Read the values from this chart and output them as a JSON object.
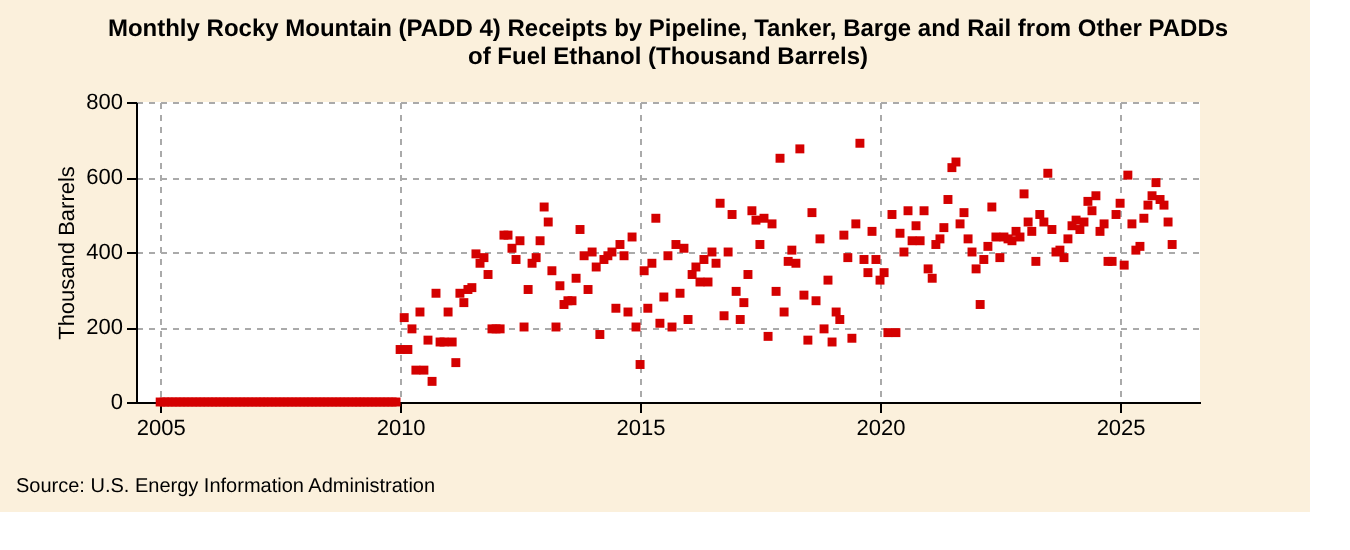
{
  "chart_data": {
    "type": "scatter",
    "title": "Monthly Rocky Mountain (PADD 4) Receipts by Pipeline, Tanker, Barge and Rail from Other PADDs of Fuel Ethanol (Thousand Barrels)",
    "ylabel": "Thousand Barrels",
    "annotations": [
      "Source: U.S. Energy Information Administration"
    ],
    "xlim": [
      "2004-07",
      "2026-09"
    ],
    "xticks": [
      "2005",
      "2010",
      "2015",
      "2020",
      "2025"
    ],
    "ylim": [
      0,
      800
    ],
    "yticks": [
      0,
      200,
      400,
      600,
      800
    ],
    "grid": true,
    "marker": "square",
    "series": [
      {
        "color": "#d40000",
        "x": [
          "2005-01",
          "2005-02",
          "2005-03",
          "2005-04",
          "2005-05",
          "2005-06",
          "2005-07",
          "2005-08",
          "2005-09",
          "2005-10",
          "2005-11",
          "2005-12",
          "2006-01",
          "2006-02",
          "2006-03",
          "2006-04",
          "2006-05",
          "2006-06",
          "2006-07",
          "2006-08",
          "2006-09",
          "2006-10",
          "2006-11",
          "2006-12",
          "2007-01",
          "2007-02",
          "2007-03",
          "2007-04",
          "2007-05",
          "2007-06",
          "2007-07",
          "2007-08",
          "2007-09",
          "2007-10",
          "2007-11",
          "2007-12",
          "2008-01",
          "2008-02",
          "2008-03",
          "2008-04",
          "2008-05",
          "2008-06",
          "2008-07",
          "2008-08",
          "2008-09",
          "2008-10",
          "2008-11",
          "2008-12",
          "2009-01",
          "2009-02",
          "2009-03",
          "2009-04",
          "2009-05",
          "2009-06",
          "2009-07",
          "2009-08",
          "2009-09",
          "2009-10",
          "2009-11",
          "2009-12",
          "2010-01",
          "2010-02",
          "2010-03",
          "2010-04",
          "2010-05",
          "2010-06",
          "2010-07",
          "2010-08",
          "2010-09",
          "2010-10",
          "2010-11",
          "2010-12",
          "2011-01",
          "2011-02",
          "2011-03",
          "2011-04",
          "2011-05",
          "2011-06",
          "2011-07",
          "2011-08",
          "2011-09",
          "2011-10",
          "2011-11",
          "2011-12",
          "2012-01",
          "2012-02",
          "2012-03",
          "2012-04",
          "2012-05",
          "2012-06",
          "2012-07",
          "2012-08",
          "2012-09",
          "2012-10",
          "2012-11",
          "2012-12",
          "2013-01",
          "2013-02",
          "2013-03",
          "2013-04",
          "2013-05",
          "2013-06",
          "2013-07",
          "2013-08",
          "2013-09",
          "2013-10",
          "2013-11",
          "2013-12",
          "2014-01",
          "2014-02",
          "2014-03",
          "2014-04",
          "2014-05",
          "2014-06",
          "2014-07",
          "2014-08",
          "2014-09",
          "2014-10",
          "2014-11",
          "2014-12",
          "2015-01",
          "2015-02",
          "2015-03",
          "2015-04",
          "2015-05",
          "2015-06",
          "2015-07",
          "2015-08",
          "2015-09",
          "2015-10",
          "2015-11",
          "2015-12",
          "2016-01",
          "2016-02",
          "2016-03",
          "2016-04",
          "2016-05",
          "2016-06",
          "2016-07",
          "2016-08",
          "2016-09",
          "2016-10",
          "2016-11",
          "2016-12",
          "2017-01",
          "2017-02",
          "2017-03",
          "2017-04",
          "2017-05",
          "2017-06",
          "2017-07",
          "2017-08",
          "2017-09",
          "2017-10",
          "2017-11",
          "2017-12",
          "2018-01",
          "2018-02",
          "2018-03",
          "2018-04",
          "2018-05",
          "2018-06",
          "2018-07",
          "2018-08",
          "2018-09",
          "2018-10",
          "2018-11",
          "2018-12",
          "2019-01",
          "2019-02",
          "2019-03",
          "2019-04",
          "2019-05",
          "2019-06",
          "2019-07",
          "2019-08",
          "2019-09",
          "2019-10",
          "2019-11",
          "2019-12",
          "2020-01",
          "2020-02",
          "2020-03",
          "2020-04",
          "2020-05",
          "2020-06",
          "2020-07",
          "2020-08",
          "2020-09",
          "2020-10",
          "2020-11",
          "2020-12",
          "2021-01",
          "2021-02",
          "2021-03",
          "2021-04",
          "2021-05",
          "2021-06",
          "2021-07",
          "2021-08",
          "2021-09",
          "2021-10",
          "2021-11",
          "2021-12",
          "2022-01",
          "2022-02",
          "2022-03",
          "2022-04",
          "2022-05",
          "2022-06",
          "2022-07",
          "2022-08",
          "2022-09",
          "2022-10",
          "2022-11",
          "2022-12",
          "2023-01",
          "2023-02",
          "2023-03",
          "2023-04",
          "2023-05",
          "2023-06",
          "2023-07",
          "2023-08",
          "2023-09",
          "2023-10",
          "2023-11",
          "2023-12",
          "2024-01",
          "2024-02",
          "2024-03",
          "2024-04",
          "2024-05",
          "2024-06",
          "2024-07",
          "2024-08",
          "2024-09",
          "2024-10",
          "2024-11",
          "2024-12",
          "2025-01",
          "2025-02",
          "2025-03",
          "2025-04",
          "2025-05",
          "2025-06",
          "2025-07",
          "2025-08",
          "2025-09",
          "2025-10",
          "2025-11",
          "2025-12",
          "2026-01",
          "2026-02"
        ],
        "values": [
          0,
          0,
          0,
          0,
          0,
          0,
          0,
          0,
          0,
          0,
          0,
          0,
          0,
          0,
          0,
          0,
          0,
          0,
          0,
          0,
          0,
          0,
          0,
          0,
          0,
          0,
          0,
          0,
          0,
          0,
          0,
          0,
          0,
          0,
          0,
          0,
          0,
          0,
          0,
          0,
          0,
          0,
          0,
          0,
          0,
          0,
          0,
          0,
          0,
          0,
          0,
          0,
          0,
          0,
          0,
          0,
          0,
          0,
          0,
          0,
          140,
          225,
          140,
          195,
          85,
          240,
          85,
          165,
          55,
          290,
          160,
          160,
          240,
          160,
          105,
          290,
          265,
          300,
          305,
          395,
          370,
          385,
          340,
          195,
          195,
          195,
          445,
          445,
          410,
          380,
          430,
          200,
          300,
          370,
          385,
          430,
          520,
          480,
          350,
          200,
          310,
          260,
          270,
          270,
          330,
          460,
          390,
          300,
          400,
          360,
          180,
          380,
          390,
          400,
          250,
          420,
          390,
          240,
          440,
          200,
          100,
          350,
          250,
          370,
          490,
          210,
          280,
          390,
          200,
          420,
          290,
          410,
          220,
          340,
          360,
          320,
          380,
          320,
          400,
          370,
          530,
          230,
          400,
          500,
          295,
          220,
          265,
          340,
          510,
          485,
          420,
          490,
          175,
          475,
          295,
          650,
          240,
          375,
          405,
          370,
          675,
          285,
          165,
          505,
          270,
          435,
          195,
          325,
          160,
          240,
          220,
          445,
          385,
          170,
          475,
          690,
          380,
          345,
          455,
          380,
          325,
          345,
          185,
          500,
          185,
          450,
          400,
          510,
          430,
          470,
          430,
          510,
          355,
          330,
          420,
          435,
          465,
          540,
          625,
          640,
          475,
          505,
          435,
          400,
          355,
          260,
          380,
          415,
          520,
          440,
          385,
          440,
          435,
          430,
          455,
          440,
          555,
          480,
          455,
          375,
          500,
          480,
          610,
          460,
          400,
          405,
          385,
          435,
          470,
          485,
          460,
          480,
          535,
          510,
          550,
          455,
          475,
          375,
          375,
          500,
          530,
          365,
          605,
          475,
          405,
          415,
          490,
          525,
          550,
          585,
          540,
          525,
          480,
          420
        ]
      }
    ]
  }
}
